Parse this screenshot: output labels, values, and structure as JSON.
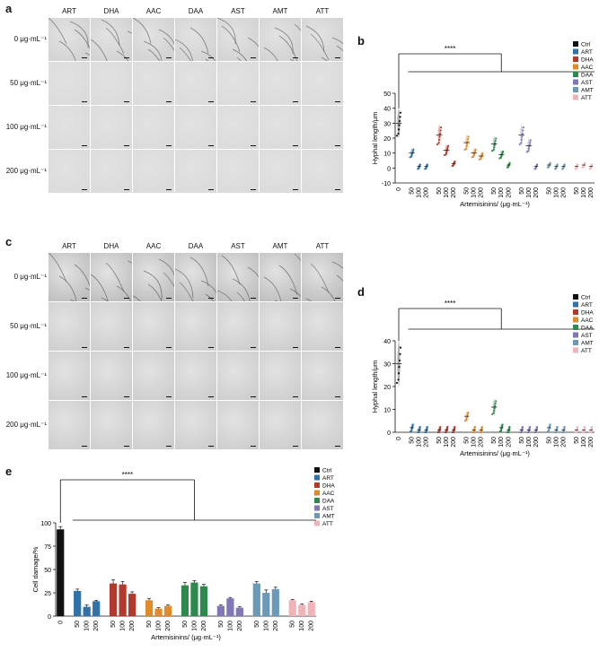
{
  "panels": {
    "a": "a",
    "b": "b",
    "c": "c",
    "d": "d",
    "e": "e"
  },
  "micrographs": {
    "columns": [
      "ART",
      "DHA",
      "AAC",
      "DAA",
      "AST",
      "AMT",
      "ATT"
    ],
    "rows": [
      "0 μg·mL⁻¹",
      "50 μg·mL⁻¹",
      "100 μg·mL⁻¹",
      "200 μg·mL⁻¹"
    ]
  },
  "colors": {
    "Ctrl": "#111111",
    "ART": "#2f73a8",
    "DHA": "#b23a2c",
    "AAC": "#e08a2c",
    "DAA": "#2e8a4c",
    "AST": "#8077b8",
    "AMT": "#6b9ab8",
    "ATT": "#efb3b8"
  },
  "chart_data": [
    {
      "id": "b",
      "type": "scatter",
      "title": "",
      "significance": "****",
      "ylabel": "Hyphal length/μm",
      "xlabel": "Artemisinins/ (μg·mL⁻¹)",
      "ylim": [
        -10,
        50
      ],
      "yticks": [
        -10,
        0,
        10,
        20,
        30,
        40,
        50
      ],
      "legend": [
        "Ctrl",
        "ART",
        "DHA",
        "AAC",
        "DAA",
        "AST",
        "AMT",
        "ATT"
      ],
      "categories": [
        "0",
        "50",
        "100",
        "200",
        "50",
        "100",
        "200",
        "50",
        "100",
        "200",
        "50",
        "100",
        "200",
        "50",
        "100",
        "200",
        "50",
        "100",
        "200",
        "50",
        "100",
        "200"
      ],
      "groups": [
        "Ctrl",
        "ART",
        "ART",
        "ART",
        "DHA",
        "DHA",
        "DHA",
        "AAC",
        "AAC",
        "AAC",
        "DAA",
        "DAA",
        "DAA",
        "AST",
        "AST",
        "AST",
        "AMT",
        "AMT",
        "AMT",
        "ATT",
        "ATT",
        "ATT"
      ],
      "medians": [
        30,
        10,
        1,
        1,
        22,
        12,
        3,
        17,
        10,
        8,
        16,
        9,
        2,
        22,
        15,
        1,
        2,
        1,
        1,
        1,
        2,
        1
      ]
    },
    {
      "id": "d",
      "type": "scatter",
      "title": "",
      "significance": "****",
      "ylabel": "Hyphal length/μm",
      "xlabel": "Artemisinins/ (μg·mL⁻¹)",
      "ylim": [
        0,
        40
      ],
      "yticks": [
        0,
        10,
        20,
        30,
        40
      ],
      "legend": [
        "Ctrl",
        "ART",
        "DHA",
        "AAC",
        "DAA",
        "AST",
        "AMT",
        "ATT"
      ],
      "categories": [
        "0",
        "50",
        "100",
        "200",
        "50",
        "100",
        "200",
        "50",
        "100",
        "200",
        "50",
        "100",
        "200",
        "50",
        "100",
        "200",
        "50",
        "100",
        "200",
        "50",
        "100",
        "200"
      ],
      "groups": [
        "Ctrl",
        "ART",
        "ART",
        "ART",
        "DHA",
        "DHA",
        "DHA",
        "AAC",
        "AAC",
        "AAC",
        "DAA",
        "DAA",
        "DAA",
        "AST",
        "AST",
        "AST",
        "AMT",
        "AMT",
        "AMT",
        "ATT",
        "ATT",
        "ATT"
      ],
      "medians": [
        30,
        2,
        1,
        1,
        1,
        1,
        1,
        7,
        1,
        1,
        11,
        2,
        1,
        1,
        1,
        1,
        2,
        1,
        1,
        1,
        1,
        1
      ]
    },
    {
      "id": "e",
      "type": "bar",
      "title": "",
      "significance": "****",
      "ylabel": "Cell damage/%",
      "xlabel": "Artemisinins/ (μg·mL⁻¹)",
      "ylim": [
        0,
        100
      ],
      "yticks": [
        0,
        25,
        50,
        75,
        100
      ],
      "legend": [
        "Ctrl",
        "ART",
        "DHA",
        "AAC",
        "DAA",
        "AST",
        "AMT",
        "ATT"
      ],
      "categories": [
        "0",
        "50",
        "100",
        "200",
        "50",
        "100",
        "200",
        "50",
        "100",
        "200",
        "50",
        "100",
        "200",
        "50",
        "100",
        "200",
        "50",
        "100",
        "200",
        "50",
        "100",
        "200"
      ],
      "groups": [
        "Ctrl",
        "ART",
        "ART",
        "ART",
        "DHA",
        "DHA",
        "DHA",
        "AAC",
        "AAC",
        "AAC",
        "DAA",
        "DAA",
        "DAA",
        "AST",
        "AST",
        "AST",
        "AMT",
        "AMT",
        "AMT",
        "ATT",
        "ATT",
        "ATT"
      ],
      "values": [
        93,
        27,
        10,
        16,
        35,
        34,
        24,
        17,
        8,
        11,
        33,
        36,
        32,
        11,
        19,
        9,
        35,
        25,
        29,
        17,
        12,
        15
      ],
      "errors": [
        3,
        2,
        2,
        1,
        4,
        3,
        2,
        2,
        1,
        1,
        3,
        2,
        2,
        1,
        1,
        1,
        2,
        3,
        2,
        1,
        1,
        1
      ]
    }
  ]
}
